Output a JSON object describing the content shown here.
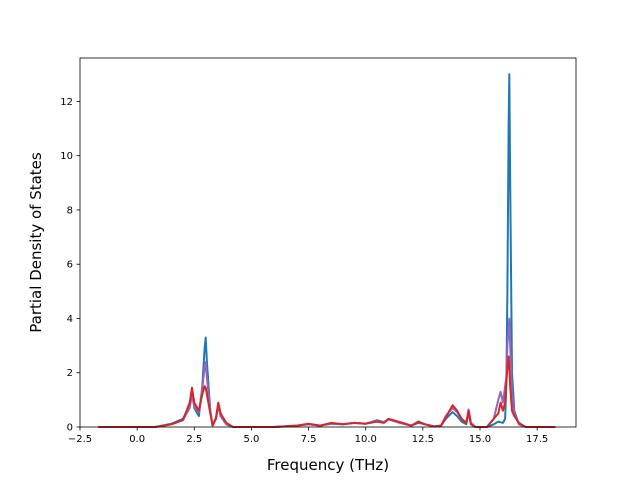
{
  "chart_data": {
    "type": "line",
    "title": "",
    "xlabel": "Frequency (THz)",
    "ylabel": "Partial Density of States",
    "xlim": [
      -2.5,
      19.2
    ],
    "ylim": [
      0,
      13.6
    ],
    "x_ticks": [
      -2.5,
      0.0,
      2.5,
      5.0,
      7.5,
      10.0,
      12.5,
      15.0,
      17.5
    ],
    "x_tick_labels": [
      "−2.5",
      "0.0",
      "2.5",
      "5.0",
      "7.5",
      "10.0",
      "12.5",
      "15.0",
      "17.5"
    ],
    "y_ticks": [
      0,
      2,
      4,
      6,
      8,
      10,
      12
    ],
    "y_tick_labels": [
      "0",
      "2",
      "4",
      "6",
      "8",
      "10",
      "12"
    ],
    "grid": false,
    "legend": "none",
    "series": [
      {
        "color": "#1f77b4",
        "points": [
          [
            -1.7,
            0
          ],
          [
            0.8,
            0
          ],
          [
            1.5,
            0.12
          ],
          [
            2.0,
            0.3
          ],
          [
            2.3,
            0.8
          ],
          [
            2.4,
            1.3
          ],
          [
            2.5,
            0.7
          ],
          [
            2.6,
            0.55
          ],
          [
            2.7,
            0.4
          ],
          [
            2.85,
            1.5
          ],
          [
            2.95,
            2.9
          ],
          [
            3.0,
            3.3
          ],
          [
            3.05,
            2.4
          ],
          [
            3.2,
            0.6
          ],
          [
            3.3,
            0.05
          ],
          [
            3.45,
            0.3
          ],
          [
            3.55,
            0.85
          ],
          [
            3.65,
            0.4
          ],
          [
            3.9,
            0.1
          ],
          [
            4.2,
            0
          ],
          [
            6.0,
            0
          ],
          [
            7.0,
            0.05
          ],
          [
            7.5,
            0.1
          ],
          [
            8.0,
            0.05
          ],
          [
            8.5,
            0.12
          ],
          [
            9.0,
            0.1
          ],
          [
            9.5,
            0.15
          ],
          [
            10.0,
            0.12
          ],
          [
            10.5,
            0.25
          ],
          [
            10.8,
            0.18
          ],
          [
            11.0,
            0.3
          ],
          [
            11.5,
            0.15
          ],
          [
            12.0,
            0.05
          ],
          [
            12.3,
            0.15
          ],
          [
            12.6,
            0.1
          ],
          [
            13.0,
            0.02
          ],
          [
            13.3,
            0.05
          ],
          [
            13.5,
            0.3
          ],
          [
            13.8,
            0.55
          ],
          [
            14.0,
            0.4
          ],
          [
            14.2,
            0.2
          ],
          [
            14.4,
            0.1
          ],
          [
            14.5,
            0.55
          ],
          [
            14.6,
            0.1
          ],
          [
            14.8,
            0
          ],
          [
            15.3,
            0
          ],
          [
            15.6,
            0.1
          ],
          [
            15.8,
            0.2
          ],
          [
            16.0,
            0.15
          ],
          [
            16.1,
            0.3
          ],
          [
            16.15,
            1.5
          ],
          [
            16.2,
            5.0
          ],
          [
            16.25,
            11.0
          ],
          [
            16.28,
            13.0
          ],
          [
            16.32,
            9.0
          ],
          [
            16.4,
            2.0
          ],
          [
            16.5,
            0.6
          ],
          [
            16.7,
            0.1
          ],
          [
            17.0,
            0
          ],
          [
            18.3,
            0
          ]
        ]
      },
      {
        "color": "#9467bd",
        "points": [
          [
            -1.7,
            0
          ],
          [
            0.8,
            0
          ],
          [
            1.5,
            0.1
          ],
          [
            2.0,
            0.25
          ],
          [
            2.3,
            0.7
          ],
          [
            2.4,
            1.2
          ],
          [
            2.5,
            0.75
          ],
          [
            2.6,
            0.65
          ],
          [
            2.7,
            0.55
          ],
          [
            2.85,
            1.4
          ],
          [
            2.95,
            2.2
          ],
          [
            3.0,
            2.4
          ],
          [
            3.05,
            1.8
          ],
          [
            3.2,
            0.6
          ],
          [
            3.3,
            0.05
          ],
          [
            3.45,
            0.3
          ],
          [
            3.55,
            0.8
          ],
          [
            3.65,
            0.4
          ],
          [
            3.9,
            0.1
          ],
          [
            4.2,
            0
          ],
          [
            6.0,
            0
          ],
          [
            7.0,
            0.05
          ],
          [
            7.5,
            0.1
          ],
          [
            8.0,
            0.05
          ],
          [
            8.5,
            0.12
          ],
          [
            9.0,
            0.1
          ],
          [
            9.5,
            0.15
          ],
          [
            10.0,
            0.12
          ],
          [
            10.5,
            0.22
          ],
          [
            10.8,
            0.18
          ],
          [
            11.0,
            0.28
          ],
          [
            11.5,
            0.15
          ],
          [
            12.0,
            0.05
          ],
          [
            12.3,
            0.2
          ],
          [
            12.6,
            0.1
          ],
          [
            13.0,
            0.02
          ],
          [
            13.3,
            0.05
          ],
          [
            13.5,
            0.4
          ],
          [
            13.8,
            0.7
          ],
          [
            14.0,
            0.55
          ],
          [
            14.2,
            0.3
          ],
          [
            14.4,
            0.15
          ],
          [
            14.5,
            0.65
          ],
          [
            14.6,
            0.15
          ],
          [
            14.8,
            0
          ],
          [
            15.3,
            0
          ],
          [
            15.6,
            0.3
          ],
          [
            15.8,
            1.0
          ],
          [
            15.9,
            1.3
          ],
          [
            16.0,
            0.9
          ],
          [
            16.1,
            1.5
          ],
          [
            16.15,
            1.8
          ],
          [
            16.2,
            3.0
          ],
          [
            16.25,
            3.6
          ],
          [
            16.28,
            4.0
          ],
          [
            16.32,
            3.0
          ],
          [
            16.4,
            1.2
          ],
          [
            16.5,
            0.5
          ],
          [
            16.7,
            0.1
          ],
          [
            17.0,
            0
          ],
          [
            18.3,
            0
          ]
        ]
      },
      {
        "color": "#d62728",
        "points": [
          [
            -1.7,
            0
          ],
          [
            0.8,
            0
          ],
          [
            1.5,
            0.1
          ],
          [
            2.0,
            0.25
          ],
          [
            2.3,
            0.9
          ],
          [
            2.4,
            1.45
          ],
          [
            2.5,
            0.9
          ],
          [
            2.6,
            0.75
          ],
          [
            2.7,
            0.6
          ],
          [
            2.85,
            1.2
          ],
          [
            2.95,
            1.5
          ],
          [
            3.0,
            1.45
          ],
          [
            3.05,
            1.2
          ],
          [
            3.2,
            0.5
          ],
          [
            3.3,
            0.05
          ],
          [
            3.45,
            0.35
          ],
          [
            3.55,
            0.9
          ],
          [
            3.65,
            0.5
          ],
          [
            3.9,
            0.15
          ],
          [
            4.2,
            0
          ],
          [
            6.0,
            0
          ],
          [
            7.0,
            0.05
          ],
          [
            7.5,
            0.12
          ],
          [
            8.0,
            0.05
          ],
          [
            8.5,
            0.15
          ],
          [
            9.0,
            0.1
          ],
          [
            9.5,
            0.15
          ],
          [
            10.0,
            0.12
          ],
          [
            10.5,
            0.2
          ],
          [
            10.8,
            0.15
          ],
          [
            11.0,
            0.3
          ],
          [
            11.5,
            0.18
          ],
          [
            12.0,
            0.05
          ],
          [
            12.3,
            0.2
          ],
          [
            12.6,
            0.1
          ],
          [
            13.0,
            0.02
          ],
          [
            13.3,
            0.05
          ],
          [
            13.5,
            0.35
          ],
          [
            13.8,
            0.8
          ],
          [
            14.0,
            0.6
          ],
          [
            14.2,
            0.3
          ],
          [
            14.4,
            0.15
          ],
          [
            14.5,
            0.6
          ],
          [
            14.6,
            0.12
          ],
          [
            14.8,
            0
          ],
          [
            15.3,
            0
          ],
          [
            15.6,
            0.3
          ],
          [
            15.8,
            0.5
          ],
          [
            15.9,
            0.9
          ],
          [
            16.0,
            0.6
          ],
          [
            16.1,
            0.9
          ],
          [
            16.15,
            1.6
          ],
          [
            16.2,
            2.2
          ],
          [
            16.25,
            2.6
          ],
          [
            16.28,
            2.2
          ],
          [
            16.32,
            1.5
          ],
          [
            16.4,
            0.6
          ],
          [
            16.5,
            0.4
          ],
          [
            16.7,
            0.15
          ],
          [
            17.0,
            0
          ],
          [
            18.3,
            0
          ]
        ]
      }
    ]
  }
}
